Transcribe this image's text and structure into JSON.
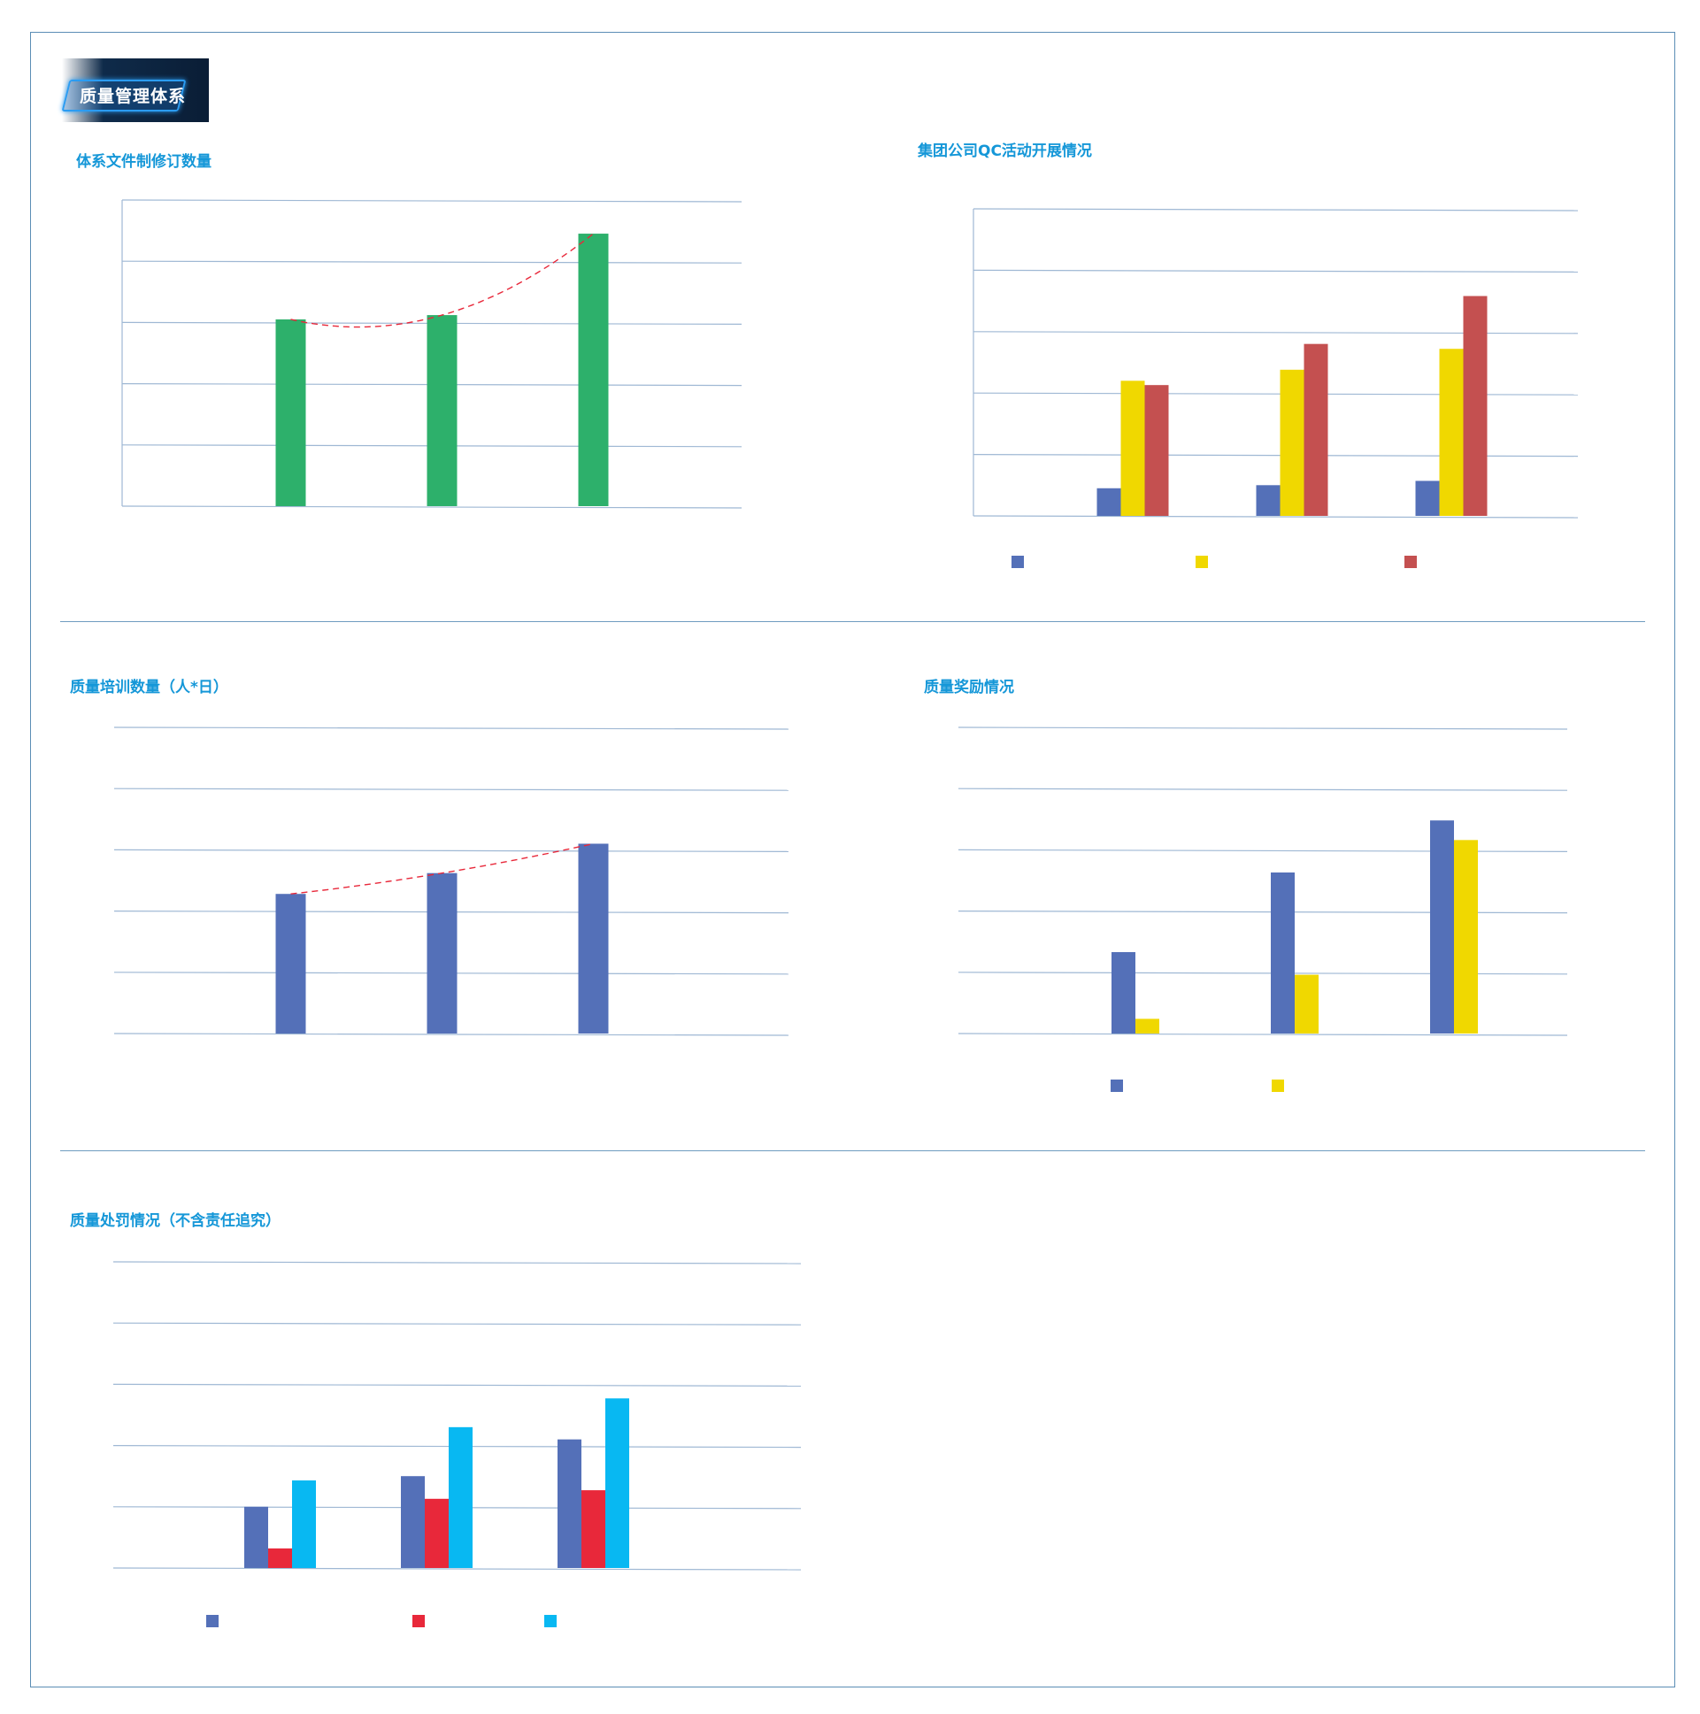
{
  "section_badge": "质量管理体系",
  "colors": {
    "green": "#2db06b",
    "blue": "#5470b8",
    "yellow": "#f0d800",
    "darkred": "#c45050",
    "red": "#e8283a",
    "cyan": "#08b8f2",
    "trend": "#e8283a",
    "grid": "#9fb8d4",
    "title": "#1597d8"
  },
  "chart_data": [
    {
      "id": "docs",
      "type": "bar",
      "title": "体系文件制修订数量",
      "categories": [
        "",
        "",
        ""
      ],
      "ylim": [
        0,
        5
      ],
      "grid": true,
      "trendline": true,
      "series": [
        {
          "values": [
            3.05,
            3.12,
            4.45
          ],
          "color": "green"
        }
      ]
    },
    {
      "id": "qc",
      "type": "bar",
      "title": "集团公司QC活动开展情况",
      "categories": [
        "",
        "",
        ""
      ],
      "ylim": [
        0,
        5
      ],
      "grid": true,
      "legend": "bottom",
      "series": [
        {
          "values": [
            0.45,
            0.5,
            0.57
          ],
          "color": "blue"
        },
        {
          "values": [
            2.2,
            2.38,
            2.72
          ],
          "color": "yellow"
        },
        {
          "values": [
            2.13,
            2.8,
            3.58
          ],
          "color": "darkred"
        }
      ]
    },
    {
      "id": "training",
      "type": "bar",
      "title": "质量培训数量（人*日）",
      "categories": [
        "",
        "",
        ""
      ],
      "ylim": [
        0,
        5
      ],
      "grid": true,
      "trendline": true,
      "series": [
        {
          "values": [
            2.28,
            2.62,
            3.1
          ],
          "color": "blue"
        }
      ]
    },
    {
      "id": "rewards",
      "type": "bar",
      "title": "质量奖励情况",
      "categories": [
        "",
        "",
        ""
      ],
      "ylim": [
        0,
        5
      ],
      "grid": true,
      "legend": "bottom",
      "series": [
        {
          "values": [
            1.33,
            2.63,
            3.48
          ],
          "color": "blue"
        },
        {
          "values": [
            0.24,
            0.96,
            3.16
          ],
          "color": "yellow"
        }
      ]
    },
    {
      "id": "penalties",
      "type": "bar",
      "title": "质量处罚情况（不含责任追究）",
      "categories": [
        "",
        "",
        ""
      ],
      "ylim": [
        0,
        5
      ],
      "grid": true,
      "legend": "bottom",
      "series": [
        {
          "values": [
            1.0,
            1.5,
            2.1
          ],
          "color": "blue"
        },
        {
          "values": [
            0.32,
            1.13,
            1.27
          ],
          "color": "red"
        },
        {
          "values": [
            1.43,
            2.3,
            2.77
          ],
          "color": "cyan"
        }
      ]
    }
  ]
}
